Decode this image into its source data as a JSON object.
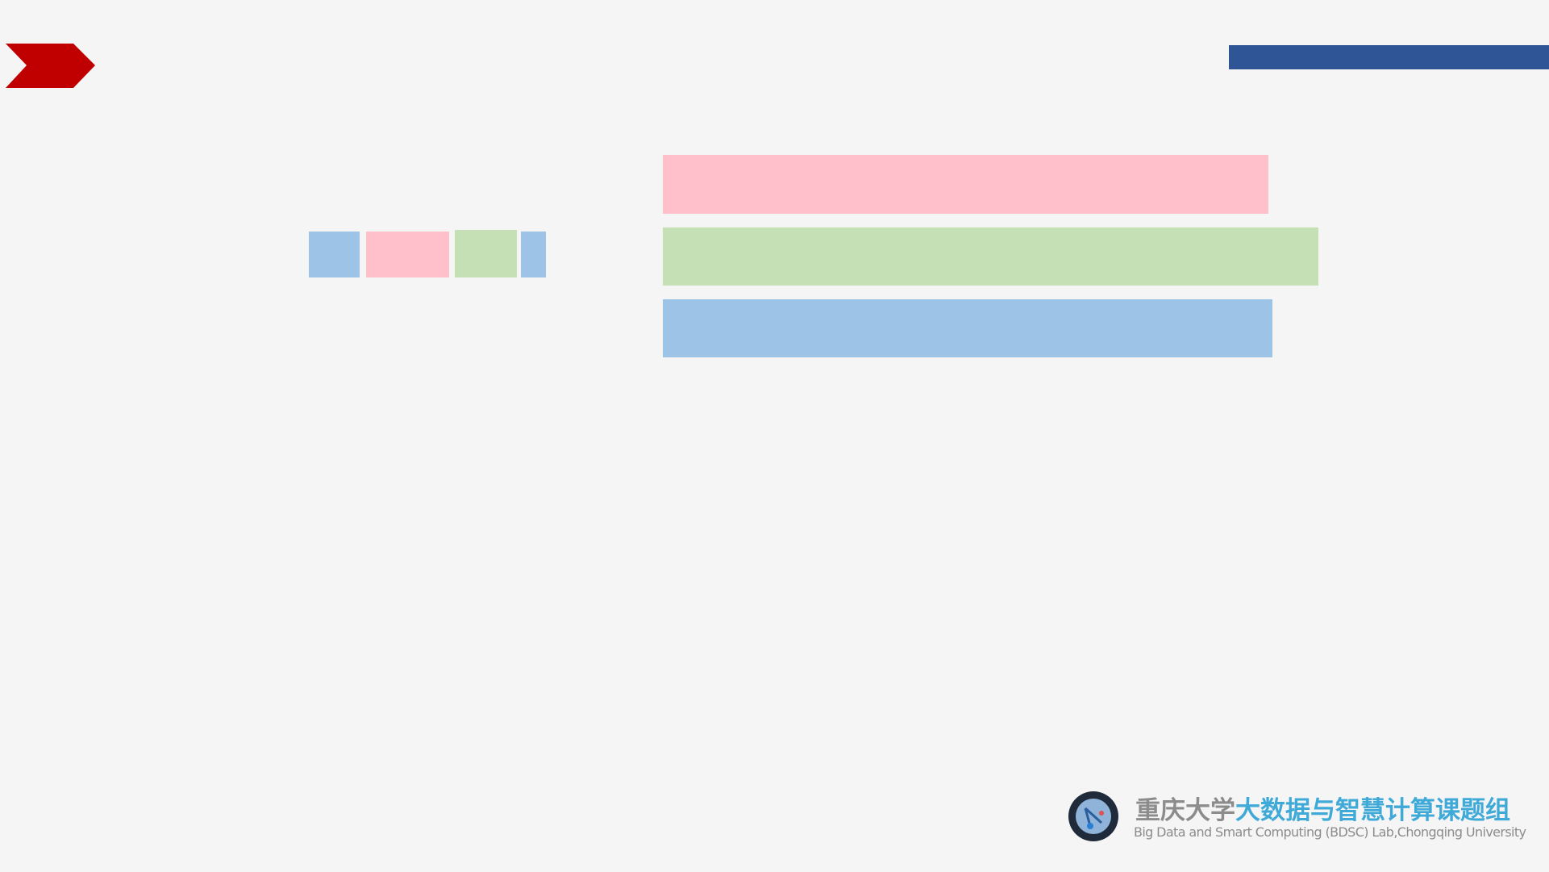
{
  "footer": {
    "lab_name_university": "重庆大学",
    "lab_name_group": "大数据与智慧计算课题组",
    "lab_name_english": "Big Data and Smart Computing (BDSC) Lab,Chongqing University"
  }
}
